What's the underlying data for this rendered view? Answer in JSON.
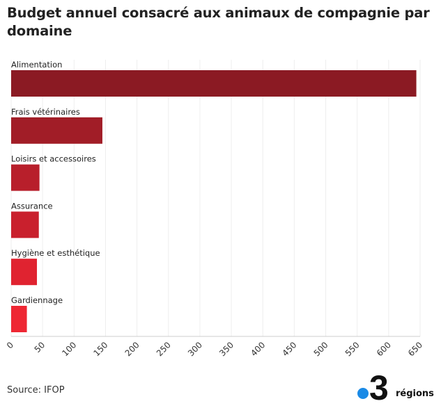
{
  "title": "Budget annuel consacré aux animaux de compagnie par domaine",
  "source": "Source: IFOP",
  "logo": {
    "number": "3",
    "word": "régions",
    "dot_color": "#1a8ae6"
  },
  "chart_data": {
    "type": "bar",
    "orientation": "horizontal",
    "title": "Budget annuel consacré aux animaux de compagnie par domaine",
    "xlabel": "",
    "ylabel": "",
    "categories": [
      "Alimentation",
      "Frais vétérinaires",
      "Loisirs et accessoires",
      "Assurance",
      "Hygiène et esthétique",
      "Gardiennage"
    ],
    "values": [
      644,
      145,
      45,
      44,
      41,
      25
    ],
    "colors": [
      "#8b1a23",
      "#a11d27",
      "#b81f2b",
      "#c9202d",
      "#e02330",
      "#ee2733"
    ],
    "xlim": [
      0,
      650
    ],
    "xticks": [
      0,
      50,
      100,
      150,
      200,
      250,
      300,
      350,
      400,
      450,
      500,
      550,
      600,
      650
    ],
    "grid": true
  }
}
